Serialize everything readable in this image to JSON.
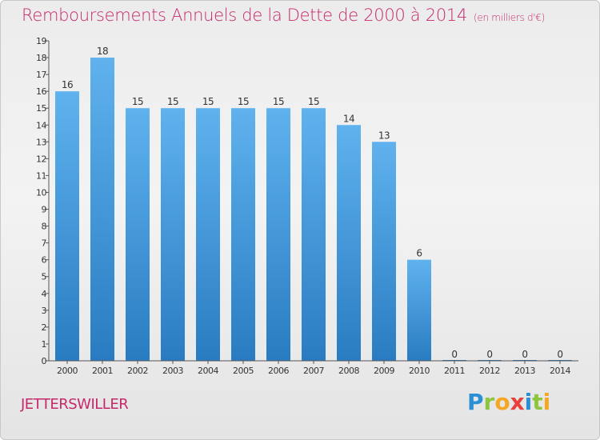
{
  "page": {
    "title": "Remboursements Annuels de la Dette de 2000 à 2014",
    "subtitle": "(en milliers d'€)",
    "town": "JETTERSWILLER",
    "logo": {
      "letters": [
        {
          "char": "P",
          "color": "#2b8fd6"
        },
        {
          "char": "r",
          "color": "#8cc63e"
        },
        {
          "char": "o",
          "color": "#f5a623"
        },
        {
          "char": "x",
          "color": "#e8403a"
        },
        {
          "char": "i",
          "color": "#2b8fd6"
        },
        {
          "char": "t",
          "color": "#8cc63e"
        },
        {
          "char": "i",
          "color": "#f5a623"
        }
      ]
    }
  },
  "colors": {
    "title": "#c6286c",
    "bar_top": "#5fb2ee",
    "bar_bottom": "#2a7cc2",
    "axis": "#555555",
    "text": "#333333"
  },
  "chart_data": {
    "type": "bar",
    "title": "Remboursements Annuels de la Dette de 2000 à 2014",
    "unit": "(en milliers d'€)",
    "xlabel": "",
    "ylabel": "",
    "categories": [
      "2000",
      "2001",
      "2002",
      "2003",
      "2004",
      "2005",
      "2006",
      "2007",
      "2008",
      "2009",
      "2010",
      "2011",
      "2012",
      "2013",
      "2014"
    ],
    "values": [
      16,
      18,
      15,
      15,
      15,
      15,
      15,
      15,
      14,
      13,
      6,
      0,
      0,
      0,
      0
    ],
    "ylim": [
      0,
      19
    ],
    "yticks": [
      0,
      1,
      2,
      3,
      4,
      5,
      6,
      7,
      8,
      9,
      10,
      11,
      12,
      13,
      14,
      15,
      16,
      17,
      18,
      19
    ],
    "grid": false,
    "legend": "none"
  }
}
